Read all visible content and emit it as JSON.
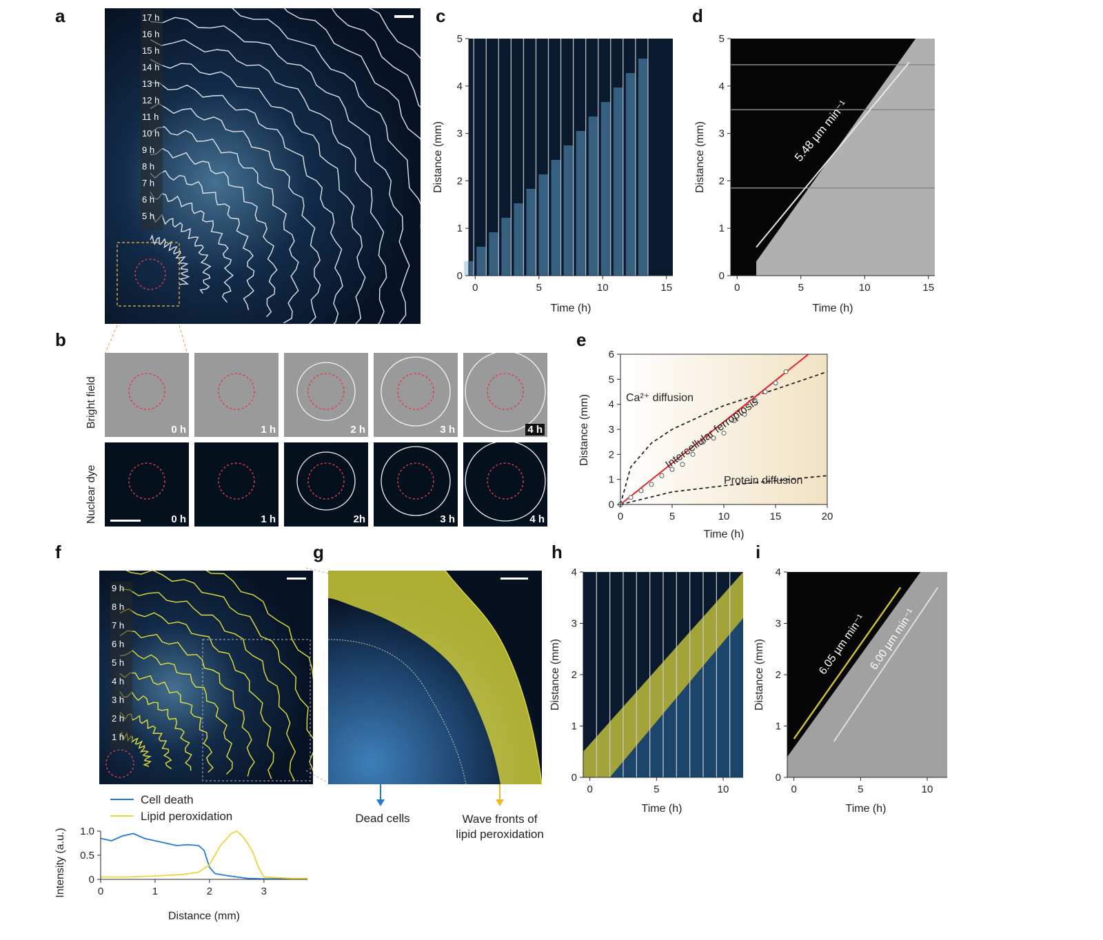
{
  "panels": {
    "a": {
      "letter": "a",
      "hours": [
        "17 h",
        "16 h",
        "15 h",
        "14 h",
        "13 h",
        "12 h",
        "11 h",
        "10 h",
        "9 h",
        "8 h",
        "7 h",
        "6 h",
        "5 h"
      ]
    },
    "b": {
      "letter": "b",
      "row1_label": "Bright field",
      "row2_label": "Nuclear dye",
      "row1_times": [
        "0 h",
        "1 h",
        "2 h",
        "3 h",
        "4 h"
      ],
      "row2_times": [
        "0 h",
        "1 h",
        "2h",
        "3 h",
        "4 h"
      ]
    },
    "c": {
      "letter": "c",
      "xlabel": "Time (h)",
      "ylabel": "Distance (mm)",
      "xticks": [
        "0",
        "5",
        "10",
        "15"
      ],
      "yticks": [
        "0",
        "1",
        "2",
        "3",
        "4",
        "5"
      ]
    },
    "d": {
      "letter": "d",
      "xlabel": "Time (h)",
      "ylabel": "Distance (mm)",
      "xticks": [
        "0",
        "5",
        "10",
        "15"
      ],
      "yticks": [
        "0",
        "1",
        "2",
        "3",
        "4",
        "5"
      ],
      "annotation": "5.48 µm min⁻¹"
    },
    "e": {
      "letter": "e",
      "xlabel": "Time (h)",
      "ylabel": "Distance (mm)",
      "xticks": [
        "0",
        "5",
        "10",
        "15",
        "20"
      ],
      "yticks": [
        "0",
        "1",
        "2",
        "3",
        "4",
        "5",
        "6"
      ],
      "ca_label": "Ca²⁺ diffusion",
      "ferro_label": "Intercellular ferroptosis",
      "protein_label": "Protein diffusion"
    },
    "f": {
      "letter": "f",
      "hours": [
        "9 h",
        "8 h",
        "7 h",
        "6 h",
        "5 h",
        "4 h",
        "3 h",
        "2 h",
        "1 h"
      ],
      "legend": [
        "Cell death",
        "Lipid peroxidation"
      ],
      "xlabel": "Distance (mm)",
      "ylabel": "Intensity (a.u.)",
      "xticks": [
        "0",
        "1",
        "2",
        "3"
      ],
      "yticks": [
        "0",
        "0.5",
        "1.0"
      ]
    },
    "g": {
      "letter": "g",
      "dead_label": "Dead cells",
      "wave_label_1": "Wave fronts of",
      "wave_label_2": "lipid peroxidation"
    },
    "h": {
      "letter": "h",
      "xlabel": "Time (h)",
      "ylabel": "Distance (mm)",
      "xticks": [
        "0",
        "5",
        "10"
      ],
      "yticks": [
        "0",
        "1",
        "2",
        "3",
        "4"
      ]
    },
    "i": {
      "letter": "i",
      "xlabel": "Time (h)",
      "ylabel": "Distance (mm)",
      "xticks": [
        "0",
        "5",
        "10"
      ],
      "yticks": [
        "0",
        "1",
        "2",
        "3",
        "4"
      ],
      "annotation_yellow": "6.05 µm min⁻¹",
      "annotation_white": "6.00 µm min⁻¹"
    }
  },
  "chart_data": [
    {
      "panel": "e",
      "type": "scatter",
      "xlabel": "Time (h)",
      "ylabel": "Distance (mm)",
      "xlim": [
        0,
        20
      ],
      "ylim": [
        0,
        6
      ],
      "series": [
        {
          "name": "Intercellular ferroptosis",
          "x": [
            0,
            1,
            2,
            3,
            4,
            5,
            6,
            7,
            8,
            9,
            10,
            11,
            12,
            13,
            14,
            15,
            16
          ],
          "y": [
            0,
            0.28,
            0.55,
            0.8,
            1.15,
            1.4,
            1.6,
            2.0,
            2.5,
            2.65,
            2.85,
            3.35,
            3.6,
            4.15,
            4.5,
            4.85,
            5.3
          ]
        }
      ],
      "fits": {
        "ferroptosis_slope": 0.33,
        "ca_curve_at": {
          "x": [
            0,
            1,
            3,
            5,
            10,
            15,
            20
          ],
          "y": [
            0,
            1.5,
            2.45,
            3.0,
            3.95,
            4.6,
            5.3
          ]
        },
        "protein_curve_at": {
          "x": [
            0,
            5,
            10,
            15,
            20
          ],
          "y": [
            0,
            0.5,
            0.75,
            0.95,
            1.15
          ]
        }
      }
    },
    {
      "panel": "f",
      "type": "line",
      "xlabel": "Distance (mm)",
      "ylabel": "Intensity (a.u.)",
      "xlim": [
        0,
        3.8
      ],
      "ylim": [
        0,
        1.0
      ],
      "series": [
        {
          "name": "Cell death",
          "x": [
            0,
            0.2,
            0.4,
            0.6,
            0.8,
            1.0,
            1.2,
            1.4,
            1.6,
            1.8,
            1.9,
            2.0,
            2.1,
            2.3,
            2.5,
            2.7,
            3.0,
            3.5,
            3.8
          ],
          "y": [
            0.85,
            0.8,
            0.9,
            0.95,
            0.85,
            0.8,
            0.75,
            0.7,
            0.72,
            0.7,
            0.6,
            0.25,
            0.12,
            0.08,
            0.05,
            0.02,
            0.01,
            0.01,
            0.01
          ]
        },
        {
          "name": "Lipid peroxidation",
          "x": [
            0,
            0.5,
            1.0,
            1.5,
            1.8,
            2.0,
            2.2,
            2.4,
            2.5,
            2.6,
            2.7,
            2.8,
            2.9,
            3.0,
            3.5,
            3.8
          ],
          "y": [
            0.05,
            0.05,
            0.07,
            0.1,
            0.15,
            0.3,
            0.7,
            0.95,
            1.0,
            0.9,
            0.75,
            0.55,
            0.25,
            0.05,
            0.02,
            0.02
          ]
        }
      ]
    }
  ]
}
